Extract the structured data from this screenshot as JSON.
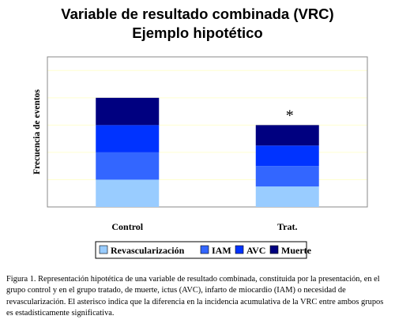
{
  "page_title": "Variable de resultado combinada (VRC)",
  "page_subtitle": "Ejemplo hipotético",
  "chart_data": {
    "type": "bar",
    "stacked": true,
    "title": "Variable de resultado combinada (VRC)",
    "subtitle": "Ejemplo hipotético",
    "xlabel": "",
    "ylabel": "Frecuencia de eventos",
    "categories": [
      "Control",
      "Trat."
    ],
    "series": [
      {
        "name": "Revascularización",
        "values": [
          1,
          0.75
        ],
        "color": "#99ccff"
      },
      {
        "name": "IAM",
        "values": [
          1,
          0.75
        ],
        "color": "#3366ff"
      },
      {
        "name": "AVC",
        "values": [
          1,
          0.75
        ],
        "color": "#0033ff"
      },
      {
        "name": "Muerte",
        "values": [
          1,
          0.75
        ],
        "color": "#000080"
      }
    ],
    "ylim": [
      0,
      5.5
    ],
    "grid": true,
    "y_tick_labels_shown": false,
    "legend_position": "bottom",
    "annotations": [
      {
        "category": "Trat.",
        "text": "*"
      }
    ],
    "plot_background": "#ffffff",
    "grid_color": "#ffffd0"
  },
  "caption": "Figura 1. Representación hipotética de una variable de resultado combinada, constituida por la presentación, en el grupo control y en el grupo tratado, de muerte, ictus (AVC), infarto de miocardio (IAM) o necesidad de revascularización. El asterisco indica que la diferencia en la incidencia acumulativa de la VRC entre ambos grupos es estadísticamente significativa."
}
